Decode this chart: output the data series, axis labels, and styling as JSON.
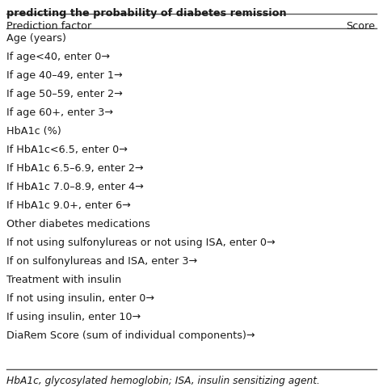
{
  "title_line": "predicting the probability of diabetes remission",
  "header_left": "Prediction factor",
  "header_right": "Score",
  "rows": [
    {
      "text": "Age (years)",
      "bold": false
    },
    {
      "text": "If age<40, enter 0→",
      "bold": false
    },
    {
      "text": "If age 40–49, enter 1→",
      "bold": false
    },
    {
      "text": "If age 50–59, enter 2→",
      "bold": false
    },
    {
      "text": "If age 60+, enter 3→",
      "bold": false
    },
    {
      "text": "HbA1c (%)",
      "bold": false
    },
    {
      "text": "If HbA1c<6.5, enter 0→",
      "bold": false
    },
    {
      "text": "If HbA1c 6.5–6.9, enter 2→",
      "bold": false
    },
    {
      "text": "If HbA1c 7.0–8.9, enter 4→",
      "bold": false
    },
    {
      "text": "If HbA1c 9.0+, enter 6→",
      "bold": false
    },
    {
      "text": "Other diabetes medications",
      "bold": false
    },
    {
      "text": "If not using sulfonylureas or not using ISA, enter 0→",
      "bold": false
    },
    {
      "text": "If on sulfonylureas and ISA, enter 3→",
      "bold": false
    },
    {
      "text": "Treatment with insulin",
      "bold": false
    },
    {
      "text": "If not using insulin, enter 0→",
      "bold": false
    },
    {
      "text": "If using insulin, enter 10→",
      "bold": false
    },
    {
      "text": "DiaRem Score (sum of individual components)→",
      "bold": false
    }
  ],
  "footnote": "HbA1c, glycosylated hemoglobin; ISA, insulin sensitizing agent.",
  "bg_color": "#ffffff",
  "text_color": "#1a1a1a",
  "line_color": "#555555",
  "font_size": 9.2,
  "header_font_size": 9.2,
  "title_font_size": 9.2,
  "footnote_font_size": 8.8
}
